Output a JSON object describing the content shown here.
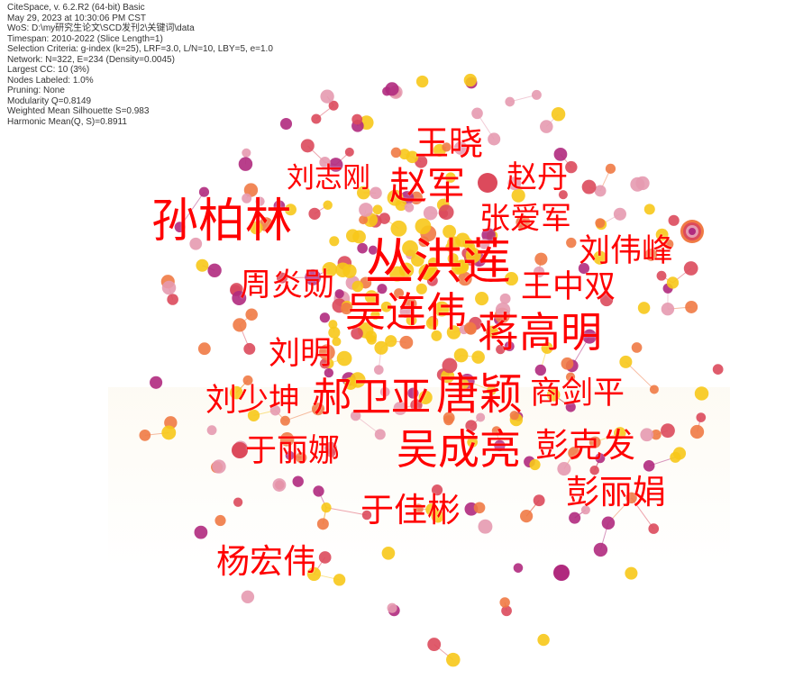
{
  "info": [
    "CiteSpace, v. 6.2.R2 (64-bit) Basic",
    "May 29, 2023 at 10:30:06 PM CST",
    "WoS: D:\\my研究生论文\\SCD发刊2\\关键词\\data",
    "Timespan: 2010-2022 (Slice Length=1)",
    "Selection Criteria: g-index (k=25), LRF=3.0, L/N=10, LBY=5, e=1.0",
    "Network: N=322, E=234 (Density=0.0045)",
    "Largest CC: 10 (3%)",
    "Nodes Labeled: 1.0%",
    "Pruning: None",
    "Modularity Q=0.8149",
    "Weighted Mean Silhouette S=0.983",
    "Harmonic Mean(Q, S)=0.8911"
  ],
  "watermark": "CiteSpace",
  "labels": [
    "王晓",
    "刘志刚",
    "赵军",
    "赵丹",
    "孙柏林",
    "张爱军",
    "丛洪莲",
    "刘伟峰",
    "周炎勋",
    "王中双",
    "吴连伟",
    "蒋高明",
    "刘明",
    "郝卫亚",
    "唐颖",
    "商剑平",
    "刘少坤",
    "于丽娜",
    "吴成亮",
    "彭克发",
    "彭丽娟",
    "于佳彬",
    "杨宏伟"
  ],
  "colors": {
    "label": "#ff0000",
    "node_purple": "#b02a7e",
    "node_red": "#dc4a5c",
    "node_orange": "#f07a45",
    "node_yellow": "#f7c81a",
    "node_pink": "#e59ab0"
  }
}
